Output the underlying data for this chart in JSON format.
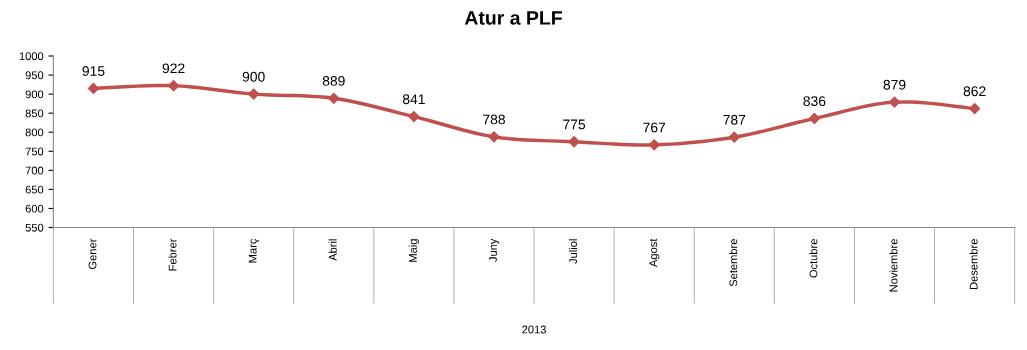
{
  "chart_data": {
    "type": "line",
    "title": "Atur a PLF",
    "categories": [
      "Gener",
      "Febrer",
      "Març",
      "Abril",
      "Maig",
      "Juny",
      "Juliol",
      "Agost",
      "Setembre",
      "Octubre",
      "Noviembre",
      "Desembre"
    ],
    "series": [
      {
        "color": "#c0504d",
        "values": [
          915,
          922,
          900,
          889,
          841,
          788,
          775,
          767,
          787,
          836,
          879,
          862
        ]
      }
    ],
    "xlabel": "2013",
    "ylim": [
      550,
      1000
    ],
    "yticks": [
      550,
      600,
      650,
      700,
      750,
      800,
      850,
      900,
      950,
      1000
    ],
    "marker": "diamond",
    "line_style": "solid",
    "data_labels": true,
    "grid": false
  }
}
